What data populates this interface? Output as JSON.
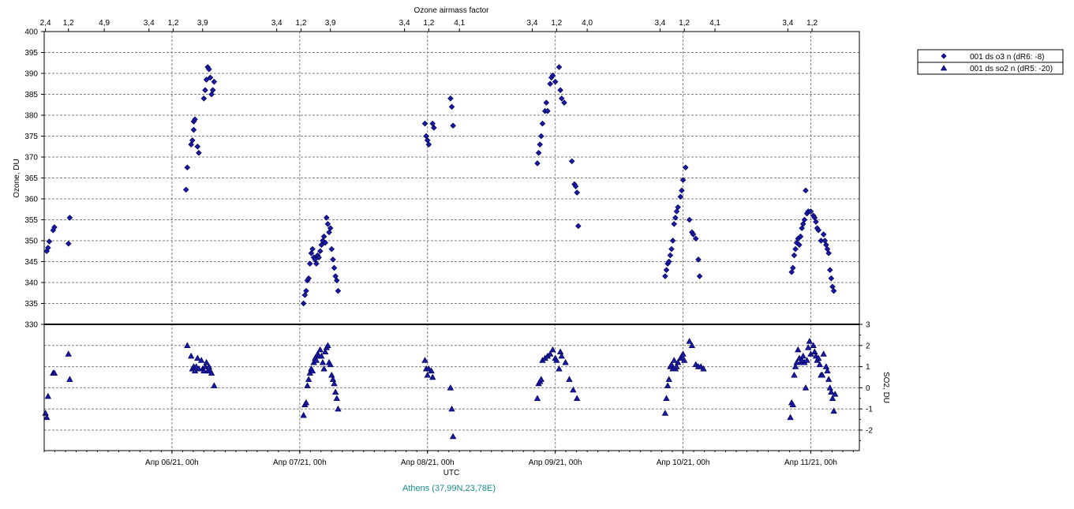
{
  "chart_data": {
    "type": "scatter",
    "top_axis_title": "Ozone airmass factor",
    "top_ticks": [
      "2,4",
      "1,2",
      "4,9",
      "3,4",
      "1,2",
      "3,9",
      "3,4",
      "1,2",
      "3,9",
      "3,4",
      "1,2",
      "4,1",
      "3,4",
      "1,2",
      "4,0",
      "3,4",
      "1,2",
      "4,1",
      "3,4",
      "1,2"
    ],
    "top_tick_days": [
      5.01,
      5.19,
      5.47,
      5.82,
      6.01,
      6.24,
      6.82,
      7.01,
      7.24,
      7.82,
      8.01,
      8.25,
      8.82,
      9.01,
      9.25,
      9.82,
      10.01,
      10.25,
      10.82,
      11.01
    ],
    "xlabel": "UTC",
    "x_range_days": [
      5.0,
      11.38
    ],
    "x_ticks": [
      {
        "day": 6,
        "label": "Апр 06/21, 00h"
      },
      {
        "day": 7,
        "label": "Апр 07/21, 00h"
      },
      {
        "day": 8,
        "label": "Апр 08/21, 00h"
      },
      {
        "day": 9,
        "label": "Апр 09/21, 00h"
      },
      {
        "day": 10,
        "label": "Апр 10/21, 00h"
      },
      {
        "day": 11,
        "label": "Апр 11/21, 00h"
      }
    ],
    "caption": "Athens (37,99N,23,78E)",
    "ozone_panel": {
      "ylabel": "Ozone, DU",
      "ylim": [
        330,
        400
      ],
      "ticks": [
        330,
        335,
        340,
        345,
        350,
        355,
        360,
        365,
        370,
        375,
        380,
        385,
        390,
        395,
        400
      ]
    },
    "so2_panel": {
      "ylabel": "SO2, DU",
      "ylim": [
        -3,
        3
      ],
      "ticks": [
        -2,
        -1,
        0,
        1,
        2,
        3
      ]
    },
    "series": [
      {
        "name": "001 ds o3  n (dR6: -8)",
        "marker": "diamond",
        "color": "#1a1aa8",
        "panel": "ozone",
        "points": [
          [
            5.02,
            347.5
          ],
          [
            5.03,
            348.3
          ],
          [
            5.04,
            349.8
          ],
          [
            5.07,
            352.5
          ],
          [
            5.08,
            353.2
          ],
          [
            5.19,
            349.3
          ],
          [
            5.2,
            355.5
          ],
          [
            6.11,
            362.2
          ],
          [
            6.12,
            367.5
          ],
          [
            6.15,
            373.0
          ],
          [
            6.16,
            374.0
          ],
          [
            6.17,
            376.5
          ],
          [
            6.17,
            378.5
          ],
          [
            6.18,
            379.0
          ],
          [
            6.2,
            372.5
          ],
          [
            6.21,
            371.0
          ],
          [
            6.25,
            384.0
          ],
          [
            6.26,
            386.0
          ],
          [
            6.27,
            388.5
          ],
          [
            6.28,
            391.5
          ],
          [
            6.29,
            391.0
          ],
          [
            6.3,
            389.0
          ],
          [
            6.31,
            385.0
          ],
          [
            6.32,
            386.0
          ],
          [
            6.33,
            388.0
          ],
          [
            7.03,
            335.0
          ],
          [
            7.04,
            337.0
          ],
          [
            7.05,
            338.0
          ],
          [
            7.06,
            340.5
          ],
          [
            7.07,
            341.0
          ],
          [
            7.08,
            344.5
          ],
          [
            7.09,
            347.0
          ],
          [
            7.1,
            348.0
          ],
          [
            7.11,
            346.0
          ],
          [
            7.12,
            345.5
          ],
          [
            7.13,
            344.5
          ],
          [
            7.14,
            346.5
          ],
          [
            7.15,
            346.0
          ],
          [
            7.16,
            347.5
          ],
          [
            7.17,
            349.0
          ],
          [
            7.18,
            350.0
          ],
          [
            7.19,
            351.0
          ],
          [
            7.2,
            349.5
          ],
          [
            7.21,
            355.5
          ],
          [
            7.22,
            354.0
          ],
          [
            7.23,
            352.0
          ],
          [
            7.24,
            353.0
          ],
          [
            7.25,
            348.0
          ],
          [
            7.26,
            345.5
          ],
          [
            7.27,
            343.5
          ],
          [
            7.28,
            341.5
          ],
          [
            7.29,
            340.5
          ],
          [
            7.3,
            338.0
          ],
          [
            7.98,
            378.0
          ],
          [
            7.99,
            375.0
          ],
          [
            8.0,
            374.0
          ],
          [
            8.01,
            373.0
          ],
          [
            8.04,
            378.0
          ],
          [
            8.05,
            377.0
          ],
          [
            8.18,
            384.0
          ],
          [
            8.19,
            382.0
          ],
          [
            8.2,
            377.5
          ],
          [
            8.86,
            368.5
          ],
          [
            8.87,
            371.0
          ],
          [
            8.88,
            373.0
          ],
          [
            8.89,
            375.0
          ],
          [
            8.9,
            378.0
          ],
          [
            8.92,
            381.0
          ],
          [
            8.93,
            383.0
          ],
          [
            8.94,
            381.0
          ],
          [
            8.96,
            387.5
          ],
          [
            8.97,
            389.0
          ],
          [
            8.98,
            389.5
          ],
          [
            9.0,
            388.0
          ],
          [
            9.03,
            391.5
          ],
          [
            9.04,
            386.0
          ],
          [
            9.05,
            384.0
          ],
          [
            9.07,
            383.0
          ],
          [
            9.13,
            369.0
          ],
          [
            9.15,
            363.5
          ],
          [
            9.16,
            363.0
          ],
          [
            9.17,
            361.5
          ],
          [
            9.18,
            353.5
          ],
          [
            9.86,
            341.5
          ],
          [
            9.87,
            343.0
          ],
          [
            9.88,
            344.5
          ],
          [
            9.89,
            345.0
          ],
          [
            9.9,
            346.5
          ],
          [
            9.91,
            348.0
          ],
          [
            9.92,
            350.0
          ],
          [
            9.93,
            354.0
          ],
          [
            9.94,
            355.5
          ],
          [
            9.95,
            357.0
          ],
          [
            9.96,
            358.0
          ],
          [
            9.98,
            360.5
          ],
          [
            9.99,
            362.0
          ],
          [
            10.0,
            364.5
          ],
          [
            10.02,
            367.5
          ],
          [
            10.05,
            355.0
          ],
          [
            10.07,
            352.0
          ],
          [
            10.08,
            351.5
          ],
          [
            10.1,
            350.5
          ],
          [
            10.12,
            345.5
          ],
          [
            10.13,
            341.5
          ],
          [
            10.85,
            342.5
          ],
          [
            10.86,
            343.5
          ],
          [
            10.87,
            346.5
          ],
          [
            10.88,
            348.0
          ],
          [
            10.89,
            349.5
          ],
          [
            10.9,
            350.5
          ],
          [
            10.91,
            349.0
          ],
          [
            10.92,
            351.0
          ],
          [
            10.93,
            353.0
          ],
          [
            10.94,
            354.0
          ],
          [
            10.95,
            355.0
          ],
          [
            10.96,
            362.0
          ],
          [
            10.97,
            356.5
          ],
          [
            10.98,
            357.0
          ],
          [
            11.0,
            357.0
          ],
          [
            11.02,
            356.0
          ],
          [
            11.03,
            355.5
          ],
          [
            11.04,
            354.5
          ],
          [
            11.05,
            353.0
          ],
          [
            11.06,
            352.5
          ],
          [
            11.08,
            350.0
          ],
          [
            11.1,
            351.5
          ],
          [
            11.11,
            350.0
          ],
          [
            11.12,
            349.0
          ],
          [
            11.13,
            348.0
          ],
          [
            11.14,
            347.0
          ],
          [
            11.15,
            343.0
          ],
          [
            11.16,
            341.0
          ],
          [
            11.17,
            339.0
          ],
          [
            11.18,
            338.0
          ]
        ]
      },
      {
        "name": "001 ds so2 n (dR5: -20)",
        "marker": "triangle",
        "color": "#1a1aa8",
        "panel": "so2",
        "points": [
          [
            5.01,
            -1.2
          ],
          [
            5.02,
            -1.4
          ],
          [
            5.03,
            -0.4
          ],
          [
            5.07,
            0.7
          ],
          [
            5.08,
            0.7
          ],
          [
            5.19,
            1.6
          ],
          [
            5.2,
            0.4
          ],
          [
            6.12,
            2.0
          ],
          [
            6.15,
            1.5
          ],
          [
            6.16,
            0.9
          ],
          [
            6.17,
            1.0
          ],
          [
            6.18,
            0.8
          ],
          [
            6.19,
            1.0
          ],
          [
            6.2,
            1.4
          ],
          [
            6.21,
            0.9
          ],
          [
            6.23,
            1.3
          ],
          [
            6.24,
            0.9
          ],
          [
            6.25,
            0.8
          ],
          [
            6.26,
            1.0
          ],
          [
            6.27,
            1.2
          ],
          [
            6.28,
            0.8
          ],
          [
            6.29,
            1.0
          ],
          [
            6.3,
            0.8
          ],
          [
            6.31,
            0.7
          ],
          [
            6.33,
            0.1
          ],
          [
            7.03,
            -1.3
          ],
          [
            7.04,
            -0.8
          ],
          [
            7.05,
            -0.7
          ],
          [
            7.06,
            0.1
          ],
          [
            7.07,
            0.4
          ],
          [
            7.08,
            0.7
          ],
          [
            7.09,
            0.9
          ],
          [
            7.1,
            0.8
          ],
          [
            7.11,
            1.2
          ],
          [
            7.12,
            1.4
          ],
          [
            7.13,
            1.3
          ],
          [
            7.14,
            1.6
          ],
          [
            7.15,
            1.5
          ],
          [
            7.16,
            1.8
          ],
          [
            7.17,
            1.5
          ],
          [
            7.18,
            1.2
          ],
          [
            7.19,
            0.9
          ],
          [
            7.2,
            1.7
          ],
          [
            7.21,
            1.9
          ],
          [
            7.22,
            2.0
          ],
          [
            7.23,
            1.2
          ],
          [
            7.24,
            1.1
          ],
          [
            7.25,
            0.6
          ],
          [
            7.26,
            0.4
          ],
          [
            7.27,
            0.2
          ],
          [
            7.28,
            -0.2
          ],
          [
            7.29,
            -0.5
          ],
          [
            7.3,
            -1.0
          ],
          [
            7.98,
            1.3
          ],
          [
            7.99,
            0.9
          ],
          [
            8.0,
            0.6
          ],
          [
            8.01,
            0.9
          ],
          [
            8.03,
            0.8
          ],
          [
            8.04,
            0.5
          ],
          [
            8.18,
            0.0
          ],
          [
            8.19,
            -1.0
          ],
          [
            8.2,
            -2.3
          ],
          [
            8.86,
            -0.5
          ],
          [
            8.87,
            0.2
          ],
          [
            8.88,
            0.3
          ],
          [
            8.89,
            0.4
          ],
          [
            8.9,
            1.3
          ],
          [
            8.92,
            1.4
          ],
          [
            8.94,
            1.5
          ],
          [
            8.96,
            1.6
          ],
          [
            8.98,
            1.8
          ],
          [
            9.0,
            1.4
          ],
          [
            9.01,
            1.3
          ],
          [
            9.03,
            0.9
          ],
          [
            9.04,
            1.7
          ],
          [
            9.05,
            1.5
          ],
          [
            9.08,
            1.2
          ],
          [
            9.11,
            0.4
          ],
          [
            9.14,
            -0.1
          ],
          [
            9.17,
            -0.5
          ],
          [
            9.86,
            -1.2
          ],
          [
            9.87,
            -0.5
          ],
          [
            9.88,
            0.1
          ],
          [
            9.89,
            0.4
          ],
          [
            9.9,
            1.0
          ],
          [
            9.91,
            1.1
          ],
          [
            9.92,
            0.9
          ],
          [
            9.93,
            1.3
          ],
          [
            9.94,
            0.9
          ],
          [
            9.95,
            1.0
          ],
          [
            9.96,
            1.2
          ],
          [
            9.98,
            1.4
          ],
          [
            9.99,
            1.5
          ],
          [
            10.0,
            1.6
          ],
          [
            10.01,
            1.3
          ],
          [
            10.05,
            2.2
          ],
          [
            10.07,
            2.0
          ],
          [
            10.1,
            1.1
          ],
          [
            10.12,
            1.0
          ],
          [
            10.14,
            1.0
          ],
          [
            10.16,
            0.9
          ],
          [
            10.84,
            -1.4
          ],
          [
            10.85,
            -0.7
          ],
          [
            10.86,
            -0.8
          ],
          [
            10.87,
            0.6
          ],
          [
            10.88,
            1.0
          ],
          [
            10.89,
            1.2
          ],
          [
            10.9,
            1.8
          ],
          [
            10.91,
            1.4
          ],
          [
            10.92,
            1.2
          ],
          [
            10.93,
            1.3
          ],
          [
            10.94,
            1.5
          ],
          [
            10.95,
            1.2
          ],
          [
            10.96,
            0.0
          ],
          [
            10.97,
            1.3
          ],
          [
            10.98,
            1.9
          ],
          [
            10.99,
            2.2
          ],
          [
            11.0,
            1.6
          ],
          [
            11.02,
            2.0
          ],
          [
            11.03,
            1.7
          ],
          [
            11.04,
            1.5
          ],
          [
            11.05,
            1.3
          ],
          [
            11.06,
            1.4
          ],
          [
            11.07,
            1.1
          ],
          [
            11.08,
            0.6
          ],
          [
            11.09,
            0.6
          ],
          [
            11.1,
            1.6
          ],
          [
            11.12,
            1.0
          ],
          [
            11.13,
            0.8
          ],
          [
            11.14,
            0.4
          ],
          [
            11.15,
            0.0
          ],
          [
            11.16,
            -0.2
          ],
          [
            11.17,
            -0.5
          ],
          [
            11.18,
            -1.1
          ],
          [
            11.19,
            -0.3
          ]
        ]
      }
    ]
  }
}
